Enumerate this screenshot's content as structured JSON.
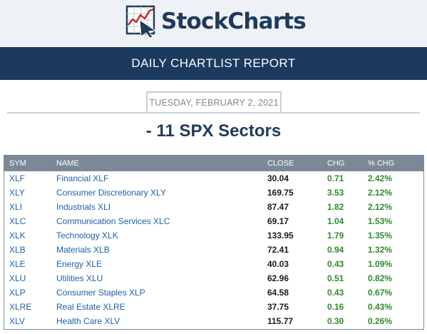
{
  "brand": {
    "name": "StockCharts"
  },
  "banner": {
    "title": "DAILY CHARTLIST REPORT"
  },
  "report": {
    "date": "TUESDAY, FEBRUARY 2, 2021",
    "list_title": "- 11 SPX Sectors"
  },
  "table": {
    "headers": {
      "sym": "SYM",
      "name": "NAME",
      "close": "CLOSE",
      "chg": "CHG",
      "pct_chg": "% CHG"
    },
    "rows": [
      {
        "sym": "XLF",
        "name": "Financial XLF",
        "close": "30.04",
        "chg": "0.71",
        "pct_chg": "2.42%"
      },
      {
        "sym": "XLY",
        "name": "Consumer Discretionary XLY",
        "close": "169.75",
        "chg": "3.53",
        "pct_chg": "2.12%"
      },
      {
        "sym": "XLI",
        "name": "Industrials XLI",
        "close": "87.47",
        "chg": "1.82",
        "pct_chg": "2.12%"
      },
      {
        "sym": "XLC",
        "name": "Communication Services XLC",
        "close": "69.17",
        "chg": "1.04",
        "pct_chg": "1.53%"
      },
      {
        "sym": "XLK",
        "name": "Technology XLK",
        "close": "133.95",
        "chg": "1.79",
        "pct_chg": "1.35%"
      },
      {
        "sym": "XLB",
        "name": "Materials XLB",
        "close": "72.41",
        "chg": "0.94",
        "pct_chg": "1.32%"
      },
      {
        "sym": "XLE",
        "name": "Energy XLE",
        "close": "40.03",
        "chg": "0.43",
        "pct_chg": "1.09%"
      },
      {
        "sym": "XLU",
        "name": "Utilities XLU",
        "close": "62.96",
        "chg": "0.51",
        "pct_chg": "0.82%"
      },
      {
        "sym": "XLP",
        "name": "Consumer Staples XLP",
        "close": "64.58",
        "chg": "0.43",
        "pct_chg": "0.67%"
      },
      {
        "sym": "XLRE",
        "name": "Real Estate XLRE",
        "close": "37.75",
        "chg": "0.16",
        "pct_chg": "0.43%"
      },
      {
        "sym": "XLV",
        "name": "Health Care XLV",
        "close": "115.77",
        "chg": "0.30",
        "pct_chg": "0.26%"
      }
    ]
  },
  "colors": {
    "navy": "#1c3a5e",
    "header_gray": "#7b8897",
    "link_blue": "#1f5fa8",
    "positive_green": "#2e8b2e"
  },
  "icons": {
    "logo": "stockcharts-logo-icon"
  }
}
